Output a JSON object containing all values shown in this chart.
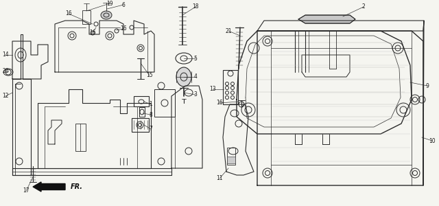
{
  "bg_color": "#f5f5f0",
  "line_color": "#2a2a2a",
  "label_color": "#1a1a1a",
  "fig_width": 6.4,
  "fig_height": 3.0,
  "dpi": 100,
  "font_size": 5.5,
  "lw": 0.7
}
